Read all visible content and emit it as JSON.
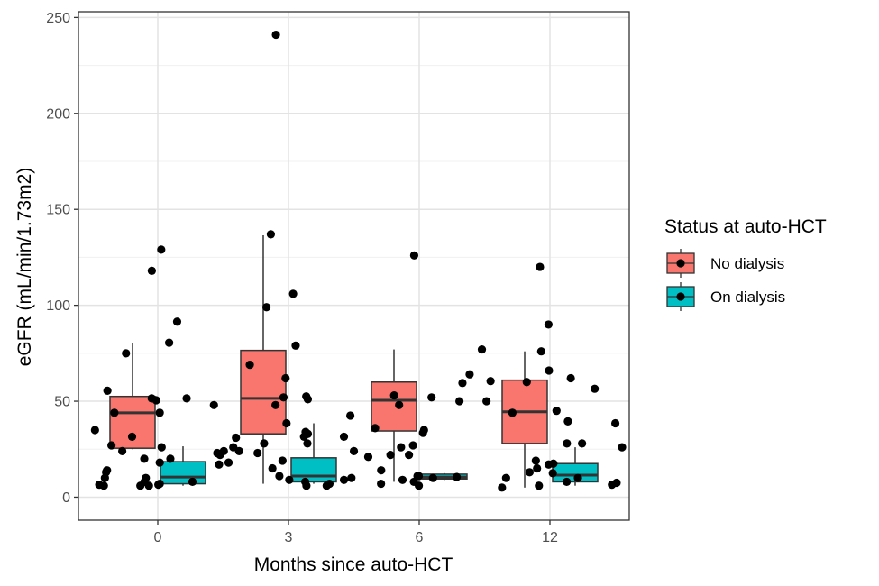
{
  "chart_data": {
    "type": "box",
    "xlabel": "Months since auto-HCT",
    "ylabel": "eGFR (mL/min/1.73m2)",
    "ylim": [
      -12,
      253
    ],
    "yticks": [
      0,
      50,
      100,
      150,
      200,
      250
    ],
    "categories": [
      "0",
      "3",
      "6",
      "12"
    ],
    "legend": {
      "title": "Status at auto-HCT",
      "entries": [
        {
          "name": "No dialysis",
          "color": "#F8766D"
        },
        {
          "name": "On dialysis",
          "color": "#00BFC4"
        }
      ]
    },
    "series": [
      {
        "name": "No dialysis",
        "color": "#F8766D",
        "boxes": [
          {
            "category": "0",
            "whisker_low": 25,
            "q1": 25.5,
            "median": 44,
            "q3": 52.5,
            "whisker_high": 80.5,
            "points": [
              55.5,
              35,
              27,
              24,
              31.5,
              44,
              91.5,
              118,
              129,
              75,
              20,
              18,
              14,
              13,
              10,
              8,
              6,
              6,
              6.5
            ]
          },
          {
            "category": "3",
            "whisker_low": 7,
            "q1": 33,
            "median": 51.5,
            "q3": 76.5,
            "whisker_high": 136.5,
            "points": [
              52.5,
              52,
              34,
              33,
              28,
              26,
              18,
              17,
              11,
              9,
              69,
              24,
              6,
              241,
              106,
              99,
              31,
              28,
              24,
              22,
              23
            ]
          },
          {
            "category": "6",
            "whisker_low": 8,
            "q1": 34.5,
            "median": 50.5,
            "q3": 60,
            "whisker_high": 77,
            "points": [
              53,
              52,
              42.5,
              36,
              35,
              26,
              22,
              21,
              14,
              11,
              10,
              9,
              8,
              7,
              6,
              126,
              33.5,
              27
            ]
          },
          {
            "category": "12",
            "whisker_low": 5,
            "q1": 28,
            "median": 44.5,
            "q3": 61,
            "whisker_high": 76,
            "points": [
              62,
              60,
              45,
              44,
              28,
              19,
              17,
              15,
              10,
              5,
              66,
              50,
              120
            ]
          }
        ]
      },
      {
        "name": "On dialysis",
        "color": "#00BFC4",
        "boxes": [
          {
            "category": "0",
            "whisker_low": 6,
            "q1": 7,
            "median": 10.5,
            "q3": 18.5,
            "whisker_high": 26.5,
            "points": [
              48,
              44,
              10,
              8,
              7,
              6.5,
              6,
              51.5,
              51.5,
              50.5,
              80.5,
              26,
              23,
              20
            ]
          },
          {
            "category": "3",
            "whisker_low": 7,
            "q1": 8,
            "median": 11,
            "q3": 20.5,
            "whisker_high": 38.5,
            "points": [
              137,
              79,
              62,
              51,
              48,
              38.5,
              31.5,
              31.5,
              24,
              19,
              15,
              10,
              9,
              8,
              7,
              6
            ]
          },
          {
            "category": "6",
            "whisker_low": 9,
            "q1": 9.5,
            "median": 10.5,
            "q3": 12,
            "whisker_high": 12.5,
            "points": [
              77,
              60.5,
              64,
              59.5,
              50,
              48,
              22,
              11,
              10.5
            ]
          },
          {
            "category": "12",
            "whisker_low": 6,
            "q1": 8,
            "median": 11.5,
            "q3": 17.5,
            "whisker_high": 26,
            "points": [
              90,
              76,
              56.5,
              39.5,
              38.5,
              28,
              26,
              17.5,
              13,
              12.5,
              10,
              8,
              7.5,
              6.5,
              6
            ]
          }
        ]
      }
    ]
  }
}
